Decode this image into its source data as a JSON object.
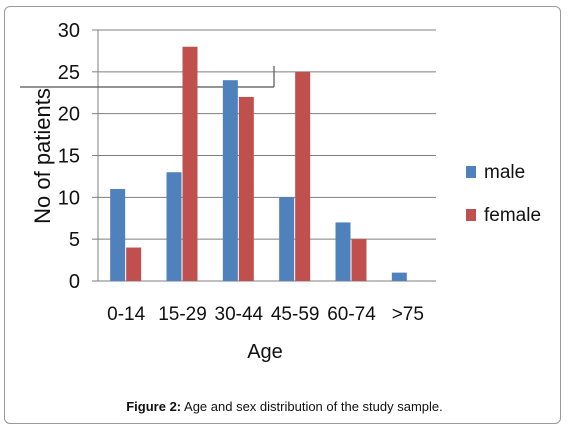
{
  "chart_data": {
    "type": "bar",
    "categories": [
      "0-14",
      "15-29",
      "30-44",
      "45-59",
      "60-74",
      ">75"
    ],
    "series": [
      {
        "name": "male",
        "values": [
          11,
          13,
          24,
          10,
          7,
          1
        ],
        "color": "#4f81bd"
      },
      {
        "name": "female",
        "values": [
          4,
          28,
          22,
          25,
          5,
          0
        ],
        "color": "#c0504d"
      }
    ],
    "xlabel": "Age",
    "ylabel": "No of patients",
    "ylim": [
      0,
      30
    ],
    "yticks": [
      0,
      5,
      10,
      15,
      20,
      25,
      30
    ],
    "grid": true,
    "legend_position": "right"
  },
  "caption": {
    "label": "Figure 2:",
    "text": " Age and sex distribution of the study sample."
  }
}
